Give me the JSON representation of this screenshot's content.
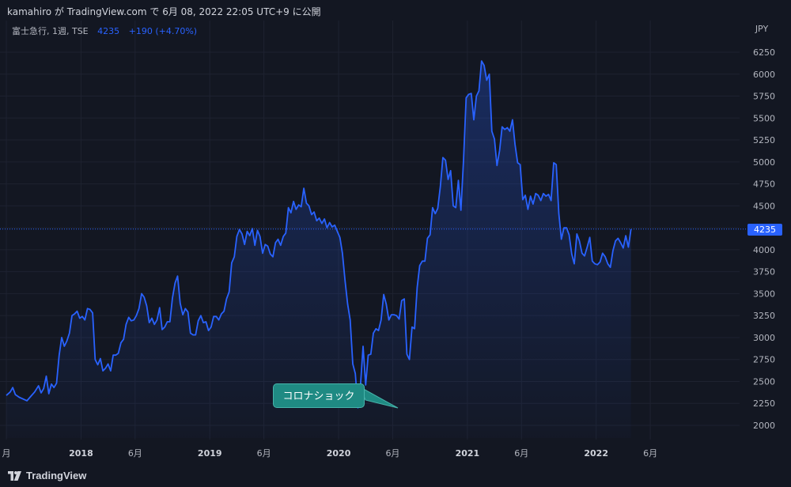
{
  "header": {
    "published": "kamahiro が TradingView.com で 6月 08, 2022 22:05 UTC+9 に公開"
  },
  "legend": {
    "symbol": "富士急行, 1週, TSE",
    "price": "4235",
    "change": "+190 (+4.70%)"
  },
  "annotation": {
    "text": "コロナショック"
  },
  "footer": {
    "brand": "TradingView"
  },
  "colors": {
    "background": "#131722",
    "line": "#2962ff",
    "grid": "#1e2230",
    "annotation": "#1f8a83"
  },
  "chart_data": {
    "type": "area",
    "currency": "JPY",
    "last_price": "4235",
    "ylim": [
      1900,
      6450
    ],
    "y_ticks": [
      "6250",
      "6000",
      "5750",
      "5500",
      "5250",
      "5000",
      "4750",
      "4500",
      "4250",
      "4000",
      "3750",
      "3500",
      "3250",
      "3000",
      "2750",
      "2500",
      "2250",
      "2000"
    ],
    "x_ticks": [
      {
        "label": "月",
        "x": 2017.42,
        "bold": false
      },
      {
        "label": "2018",
        "x": 2018.0,
        "bold": true
      },
      {
        "label": "6月",
        "x": 2018.42,
        "bold": false
      },
      {
        "label": "2019",
        "x": 2019.0,
        "bold": true
      },
      {
        "label": "6月",
        "x": 2019.42,
        "bold": false
      },
      {
        "label": "2020",
        "x": 2020.0,
        "bold": true
      },
      {
        "label": "6月",
        "x": 2020.42,
        "bold": false
      },
      {
        "label": "2021",
        "x": 2021.0,
        "bold": true
      },
      {
        "label": "6月",
        "x": 2021.42,
        "bold": false
      },
      {
        "label": "2022",
        "x": 2022.0,
        "bold": true
      },
      {
        "label": "6月",
        "x": 2022.42,
        "bold": false
      }
    ],
    "x_range": [
      2017.42,
      2022.96
    ],
    "series": [
      {
        "points": [
          [
            2017.42,
            2340
          ],
          [
            2017.45,
            2380
          ],
          [
            2017.47,
            2430
          ],
          [
            2017.49,
            2350
          ],
          [
            2017.52,
            2320
          ],
          [
            2017.55,
            2300
          ],
          [
            2017.58,
            2280
          ],
          [
            2017.61,
            2330
          ],
          [
            2017.64,
            2380
          ],
          [
            2017.67,
            2450
          ],
          [
            2017.69,
            2370
          ],
          [
            2017.71,
            2420
          ],
          [
            2017.73,
            2560
          ],
          [
            2017.75,
            2360
          ],
          [
            2017.77,
            2470
          ],
          [
            2017.79,
            2430
          ],
          [
            2017.81,
            2480
          ],
          [
            2017.83,
            2800
          ],
          [
            2017.85,
            3000
          ],
          [
            2017.87,
            2900
          ],
          [
            2017.89,
            2960
          ],
          [
            2017.91,
            3050
          ],
          [
            2017.93,
            3250
          ],
          [
            2017.95,
            3270
          ],
          [
            2017.97,
            3300
          ],
          [
            2017.99,
            3220
          ],
          [
            2018.01,
            3240
          ],
          [
            2018.03,
            3200
          ],
          [
            2018.05,
            3330
          ],
          [
            2018.07,
            3320
          ],
          [
            2018.09,
            3280
          ],
          [
            2018.11,
            2750
          ],
          [
            2018.13,
            2690
          ],
          [
            2018.15,
            2760
          ],
          [
            2018.17,
            2620
          ],
          [
            2018.19,
            2650
          ],
          [
            2018.21,
            2700
          ],
          [
            2018.23,
            2620
          ],
          [
            2018.25,
            2800
          ],
          [
            2018.27,
            2800
          ],
          [
            2018.29,
            2820
          ],
          [
            2018.31,
            2940
          ],
          [
            2018.33,
            2980
          ],
          [
            2018.35,
            3150
          ],
          [
            2018.37,
            3230
          ],
          [
            2018.39,
            3190
          ],
          [
            2018.41,
            3200
          ],
          [
            2018.43,
            3250
          ],
          [
            2018.45,
            3330
          ],
          [
            2018.47,
            3500
          ],
          [
            2018.49,
            3460
          ],
          [
            2018.51,
            3360
          ],
          [
            2018.53,
            3170
          ],
          [
            2018.55,
            3220
          ],
          [
            2018.57,
            3150
          ],
          [
            2018.59,
            3200
          ],
          [
            2018.61,
            3340
          ],
          [
            2018.63,
            3090
          ],
          [
            2018.65,
            3120
          ],
          [
            2018.67,
            3180
          ],
          [
            2018.69,
            3180
          ],
          [
            2018.71,
            3450
          ],
          [
            2018.73,
            3620
          ],
          [
            2018.75,
            3700
          ],
          [
            2018.77,
            3390
          ],
          [
            2018.79,
            3260
          ],
          [
            2018.81,
            3330
          ],
          [
            2018.83,
            3290
          ],
          [
            2018.85,
            3050
          ],
          [
            2018.87,
            3030
          ],
          [
            2018.89,
            3030
          ],
          [
            2018.91,
            3190
          ],
          [
            2018.93,
            3250
          ],
          [
            2018.95,
            3170
          ],
          [
            2018.97,
            3180
          ],
          [
            2018.99,
            3080
          ],
          [
            2019.01,
            3120
          ],
          [
            2019.03,
            3240
          ],
          [
            2019.05,
            3240
          ],
          [
            2019.07,
            3200
          ],
          [
            2019.09,
            3270
          ],
          [
            2019.11,
            3300
          ],
          [
            2019.13,
            3440
          ],
          [
            2019.15,
            3520
          ],
          [
            2019.17,
            3850
          ],
          [
            2019.19,
            3920
          ],
          [
            2019.21,
            4150
          ],
          [
            2019.23,
            4230
          ],
          [
            2019.25,
            4180
          ],
          [
            2019.27,
            4060
          ],
          [
            2019.29,
            4210
          ],
          [
            2019.31,
            4160
          ],
          [
            2019.33,
            4240
          ],
          [
            2019.35,
            4050
          ],
          [
            2019.37,
            4220
          ],
          [
            2019.39,
            4150
          ],
          [
            2019.41,
            3960
          ],
          [
            2019.43,
            4060
          ],
          [
            2019.45,
            4040
          ],
          [
            2019.47,
            3950
          ],
          [
            2019.49,
            3920
          ],
          [
            2019.51,
            4080
          ],
          [
            2019.53,
            4120
          ],
          [
            2019.55,
            4050
          ],
          [
            2019.57,
            4150
          ],
          [
            2019.59,
            4190
          ],
          [
            2019.61,
            4480
          ],
          [
            2019.63,
            4420
          ],
          [
            2019.65,
            4550
          ],
          [
            2019.67,
            4460
          ],
          [
            2019.69,
            4510
          ],
          [
            2019.71,
            4490
          ],
          [
            2019.73,
            4700
          ],
          [
            2019.75,
            4530
          ],
          [
            2019.77,
            4500
          ],
          [
            2019.79,
            4400
          ],
          [
            2019.81,
            4430
          ],
          [
            2019.83,
            4330
          ],
          [
            2019.85,
            4360
          ],
          [
            2019.87,
            4300
          ],
          [
            2019.89,
            4350
          ],
          [
            2019.91,
            4250
          ],
          [
            2019.93,
            4310
          ],
          [
            2019.95,
            4260
          ],
          [
            2019.97,
            4280
          ],
          [
            2019.99,
            4210
          ],
          [
            2020.01,
            4140
          ],
          [
            2020.03,
            3960
          ],
          [
            2020.05,
            3650
          ],
          [
            2020.07,
            3380
          ],
          [
            2020.09,
            3200
          ],
          [
            2020.11,
            2700
          ],
          [
            2020.13,
            2590
          ],
          [
            2020.15,
            2200
          ],
          [
            2020.17,
            2450
          ],
          [
            2020.19,
            2900
          ],
          [
            2020.21,
            2460
          ],
          [
            2020.23,
            2800
          ],
          [
            2020.25,
            2810
          ],
          [
            2020.27,
            3050
          ],
          [
            2020.29,
            3100
          ],
          [
            2020.31,
            3080
          ],
          [
            2020.33,
            3200
          ],
          [
            2020.35,
            3490
          ],
          [
            2020.37,
            3380
          ],
          [
            2020.39,
            3200
          ],
          [
            2020.41,
            3260
          ],
          [
            2020.43,
            3260
          ],
          [
            2020.45,
            3250
          ],
          [
            2020.47,
            3210
          ],
          [
            2020.49,
            3420
          ],
          [
            2020.51,
            3440
          ],
          [
            2020.53,
            2810
          ],
          [
            2020.55,
            2750
          ],
          [
            2020.57,
            3120
          ],
          [
            2020.59,
            3100
          ],
          [
            2020.61,
            3570
          ],
          [
            2020.63,
            3820
          ],
          [
            2020.65,
            3870
          ],
          [
            2020.67,
            3870
          ],
          [
            2020.69,
            4130
          ],
          [
            2020.71,
            4170
          ],
          [
            2020.73,
            4480
          ],
          [
            2020.75,
            4410
          ],
          [
            2020.77,
            4470
          ],
          [
            2020.79,
            4720
          ],
          [
            2020.81,
            5050
          ],
          [
            2020.83,
            5020
          ],
          [
            2020.85,
            4800
          ],
          [
            2020.87,
            4900
          ],
          [
            2020.89,
            4500
          ],
          [
            2020.91,
            4480
          ],
          [
            2020.93,
            4790
          ],
          [
            2020.95,
            4450
          ],
          [
            2020.97,
            5020
          ],
          [
            2020.99,
            5730
          ],
          [
            2021.01,
            5770
          ],
          [
            2021.03,
            5780
          ],
          [
            2021.05,
            5480
          ],
          [
            2021.07,
            5750
          ],
          [
            2021.09,
            5810
          ],
          [
            2021.11,
            6150
          ],
          [
            2021.13,
            6100
          ],
          [
            2021.15,
            5930
          ],
          [
            2021.17,
            6000
          ],
          [
            2021.19,
            5350
          ],
          [
            2021.21,
            5260
          ],
          [
            2021.23,
            4960
          ],
          [
            2021.25,
            5130
          ],
          [
            2021.27,
            5400
          ],
          [
            2021.29,
            5370
          ],
          [
            2021.31,
            5390
          ],
          [
            2021.33,
            5350
          ],
          [
            2021.35,
            5480
          ],
          [
            2021.37,
            5200
          ],
          [
            2021.39,
            4990
          ],
          [
            2021.41,
            4970
          ],
          [
            2021.43,
            4570
          ],
          [
            2021.45,
            4620
          ],
          [
            2021.47,
            4460
          ],
          [
            2021.49,
            4610
          ],
          [
            2021.51,
            4520
          ],
          [
            2021.53,
            4640
          ],
          [
            2021.55,
            4620
          ],
          [
            2021.57,
            4560
          ],
          [
            2021.59,
            4640
          ],
          [
            2021.61,
            4610
          ],
          [
            2021.63,
            4630
          ],
          [
            2021.65,
            4560
          ],
          [
            2021.67,
            4990
          ],
          [
            2021.69,
            4970
          ],
          [
            2021.71,
            4410
          ],
          [
            2021.73,
            4120
          ],
          [
            2021.75,
            4250
          ],
          [
            2021.77,
            4250
          ],
          [
            2021.79,
            4170
          ],
          [
            2021.81,
            3950
          ],
          [
            2021.83,
            3840
          ],
          [
            2021.85,
            4180
          ],
          [
            2021.87,
            4100
          ],
          [
            2021.89,
            3960
          ],
          [
            2021.91,
            3930
          ],
          [
            2021.93,
            4030
          ],
          [
            2021.95,
            4140
          ],
          [
            2021.97,
            3870
          ],
          [
            2021.99,
            3840
          ],
          [
            2022.01,
            3830
          ],
          [
            2022.03,
            3860
          ],
          [
            2022.05,
            3960
          ],
          [
            2022.07,
            3920
          ],
          [
            2022.09,
            3840
          ],
          [
            2022.11,
            3800
          ],
          [
            2022.13,
            3990
          ],
          [
            2022.15,
            4100
          ],
          [
            2022.17,
            4130
          ],
          [
            2022.19,
            4080
          ],
          [
            2022.21,
            4020
          ],
          [
            2022.23,
            4160
          ],
          [
            2022.25,
            4030
          ],
          [
            2022.27,
            4235
          ]
        ]
      }
    ]
  }
}
